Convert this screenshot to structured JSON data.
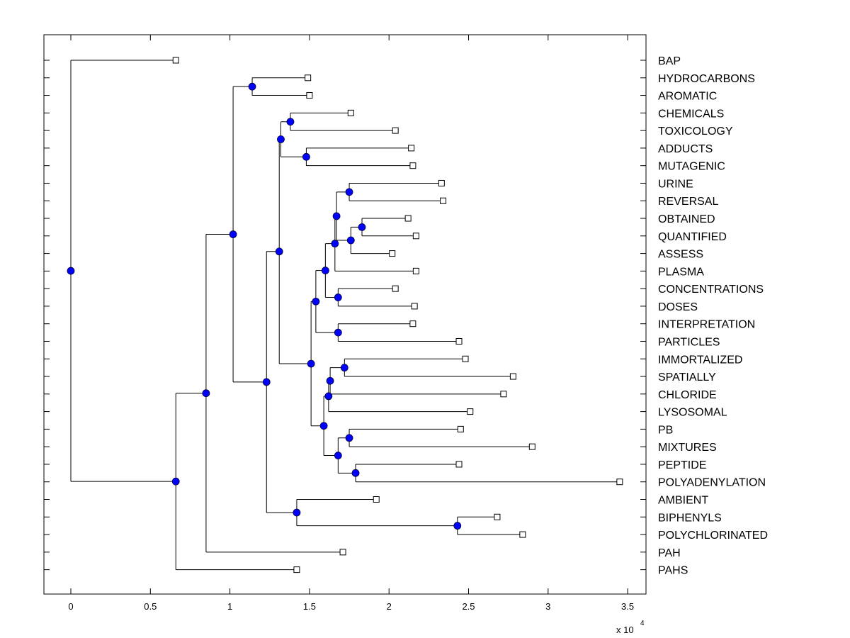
{
  "chart_data": {
    "type": "dendrogram",
    "title": "",
    "xlabel": "",
    "ylabel": "",
    "x_multiplier_label": "x 10",
    "x_multiplier_exponent": "4",
    "xlim": [
      -0.17,
      3.6
    ],
    "x_ticks": [
      0,
      0.5,
      1,
      1.5,
      2,
      2.5,
      3,
      3.5
    ],
    "x_tick_labels": [
      "0",
      "0.5",
      "1",
      "1.5",
      "2",
      "2.5",
      "3",
      "3.5"
    ],
    "grid": false,
    "colors": {
      "branch_node": "#0000ff",
      "leaf_node": "#ffffff",
      "line": "#000000"
    },
    "leaves_order": [
      "BAP",
      "HYDROCARBONS",
      "AROMATIC",
      "CHEMICALS",
      "TOXICOLOGY",
      "ADDUCTS",
      "MUTAGENIC",
      "URINE",
      "REVERSAL",
      "OBTAINED",
      "QUANTIFIED",
      "ASSESS",
      "PLASMA",
      "CONCENTRATIONS",
      "DOSES",
      "INTERPRETATION",
      "PARTICLES",
      "IMMORTALIZED",
      "SPATIALLY",
      "CHLORIDE",
      "LYSOSOMAL",
      "PB",
      "MIXTURES",
      "PEPTIDE",
      "POLYADENYLATION",
      "AMBIENT",
      "BIPHENYLS",
      "POLYCHLORINATED",
      "PAH",
      "PAHS"
    ],
    "tree": {
      "x": 0,
      "children": [
        {
          "leaf": "BAP",
          "x": 0.66
        },
        {
          "x": 0.66,
          "children": [
            {
              "x": 0.85,
              "children": [
                {
                  "x": 1.02,
                  "children": [
                    {
                      "x": 1.14,
                      "children": [
                        {
                          "leaf": "HYDROCARBONS",
                          "x": 1.49
                        },
                        {
                          "leaf": "AROMATIC",
                          "x": 1.5
                        }
                      ]
                    },
                    {
                      "x": 1.23,
                      "children": [
                        {
                          "x": 1.31,
                          "children": [
                            {
                              "x": 1.32,
                              "children": [
                                {
                                  "x": 1.38,
                                  "children": [
                                    {
                                      "leaf": "CHEMICALS",
                                      "x": 1.76
                                    },
                                    {
                                      "leaf": "TOXICOLOGY",
                                      "x": 2.04
                                    }
                                  ]
                                },
                                {
                                  "x": 1.48,
                                  "children": [
                                    {
                                      "leaf": "ADDUCTS",
                                      "x": 2.14
                                    },
                                    {
                                      "leaf": "MUTAGENIC",
                                      "x": 2.15
                                    }
                                  ]
                                }
                              ]
                            },
                            {
                              "x": 1.51,
                              "children": [
                                {
                                  "x": 1.54,
                                  "children": [
                                    {
                                      "x": 1.6,
                                      "children": [
                                        {
                                          "x": 1.66,
                                          "children": [
                                            {
                                              "x": 1.67,
                                              "children": [
                                                {
                                                  "x": 1.75,
                                                  "children": [
                                                    {
                                                      "leaf": "URINE",
                                                      "x": 2.33
                                                    },
                                                    {
                                                      "leaf": "REVERSAL",
                                                      "x": 2.34
                                                    }
                                                  ]
                                                },
                                                {
                                                  "x": 1.76,
                                                  "children": [
                                                    {
                                                      "x": 1.83,
                                                      "children": [
                                                        {
                                                          "leaf": "OBTAINED",
                                                          "x": 2.12
                                                        },
                                                        {
                                                          "leaf": "QUANTIFIED",
                                                          "x": 2.17
                                                        }
                                                      ]
                                                    },
                                                    {
                                                      "leaf": "ASSESS",
                                                      "x": 2.02
                                                    }
                                                  ]
                                                }
                                              ]
                                            },
                                            {
                                              "leaf": "PLASMA",
                                              "x": 2.17
                                            }
                                          ]
                                        },
                                        {
                                          "x": 1.68,
                                          "children": [
                                            {
                                              "leaf": "CONCENTRATIONS",
                                              "x": 2.04
                                            },
                                            {
                                              "leaf": "DOSES",
                                              "x": 2.16
                                            }
                                          ]
                                        }
                                      ]
                                    },
                                    {
                                      "x": 1.68,
                                      "children": [
                                        {
                                          "leaf": "INTERPRETATION",
                                          "x": 2.15
                                        },
                                        {
                                          "leaf": "PARTICLES",
                                          "x": 2.44
                                        }
                                      ]
                                    }
                                  ]
                                },
                                {
                                  "x": 1.59,
                                  "children": [
                                    {
                                      "x": 1.62,
                                      "children": [
                                        {
                                          "x": 1.63,
                                          "children": [
                                            {
                                              "x": 1.72,
                                              "children": [
                                                {
                                                  "leaf": "IMMORTALIZED",
                                                  "x": 2.48
                                                },
                                                {
                                                  "leaf": "SPATIALLY",
                                                  "x": 2.78
                                                }
                                              ]
                                            },
                                            {
                                              "leaf": "CHLORIDE",
                                              "x": 2.72
                                            }
                                          ]
                                        },
                                        {
                                          "leaf": "LYSOSOMAL",
                                          "x": 2.51
                                        }
                                      ]
                                    },
                                    {
                                      "x": 1.68,
                                      "children": [
                                        {
                                          "x": 1.75,
                                          "children": [
                                            {
                                              "leaf": "PB",
                                              "x": 2.45
                                            },
                                            {
                                              "leaf": "MIXTURES",
                                              "x": 2.9
                                            }
                                          ]
                                        },
                                        {
                                          "x": 1.79,
                                          "children": [
                                            {
                                              "leaf": "PEPTIDE",
                                              "x": 2.44
                                            },
                                            {
                                              "leaf": "POLYADENYLATION",
                                              "x": 3.45
                                            }
                                          ]
                                        }
                                      ]
                                    }
                                  ]
                                }
                              ]
                            }
                          ]
                        },
                        {
                          "x": 1.42,
                          "children": [
                            {
                              "leaf": "AMBIENT",
                              "x": 1.92
                            },
                            {
                              "x": 2.43,
                              "children": [
                                {
                                  "leaf": "BIPHENYLS",
                                  "x": 2.68
                                },
                                {
                                  "leaf": "POLYCHLORINATED",
                                  "x": 2.84
                                }
                              ]
                            }
                          ]
                        }
                      ]
                    }
                  ]
                },
                {
                  "leaf": "PAH",
                  "x": 1.71
                }
              ]
            },
            {
              "leaf": "PAHS",
              "x": 1.42
            }
          ]
        }
      ]
    }
  }
}
